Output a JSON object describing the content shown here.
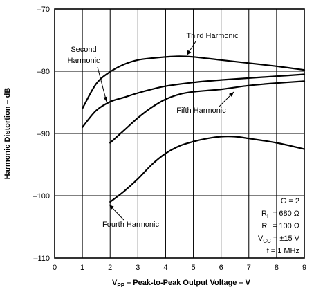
{
  "chart_data": {
    "type": "line",
    "title": "",
    "xlabel": {
      "main": "V",
      "subscript": "PP",
      "rest": " – Peak-to-Peak Output Voltage – V"
    },
    "ylabel": "Harmonic Distortion – dB",
    "xlim": [
      0,
      9
    ],
    "ylim": [
      -110,
      -70
    ],
    "x_ticks": [
      "0",
      "1",
      "2",
      "3",
      "4",
      "5",
      "6",
      "7",
      "8",
      "9"
    ],
    "y_ticks": [
      "–70",
      "–80",
      "–90",
      "–100",
      "–110"
    ],
    "y_tick_values": [
      -70,
      -80,
      -90,
      -100,
      -110
    ],
    "grid": true,
    "series": [
      {
        "name": "Second Harmonic",
        "x": [
          1,
          1.5,
          2,
          2.5,
          3,
          3.5,
          4,
          5,
          6,
          7,
          8,
          9
        ],
        "y": [
          -89,
          -86.3,
          -84.9,
          -84.2,
          -83.5,
          -82.9,
          -82.4,
          -81.8,
          -81.4,
          -81.1,
          -80.8,
          -80.5
        ]
      },
      {
        "name": "Third Harmonic",
        "x": [
          1,
          1.5,
          2,
          2.5,
          3,
          3.5,
          4,
          4.5,
          5,
          6,
          7,
          8,
          9
        ],
        "y": [
          -86,
          -82,
          -80.1,
          -78.9,
          -78.2,
          -77.9,
          -77.7,
          -77.6,
          -77.7,
          -78.2,
          -78.7,
          -79.2,
          -79.8
        ]
      },
      {
        "name": "Fifth Harmonic",
        "x": [
          2,
          2.5,
          3,
          3.5,
          4,
          4.5,
          5,
          6,
          7,
          8,
          9
        ],
        "y": [
          -91.5,
          -89.5,
          -87.5,
          -85.8,
          -84.5,
          -83.7,
          -83.3,
          -82.9,
          -82.3,
          -81.9,
          -81.6
        ]
      },
      {
        "name": "Fourth Harmonic",
        "x": [
          2,
          2.5,
          3,
          3.5,
          4,
          4.5,
          5,
          5.5,
          6,
          6.5,
          7,
          8,
          9
        ],
        "y": [
          -101,
          -99.3,
          -97.3,
          -95,
          -93.2,
          -92,
          -91.3,
          -90.8,
          -90.5,
          -90.5,
          -90.8,
          -91.5,
          -92.5
        ]
      }
    ],
    "annotations": {
      "second": [
        "Second",
        "Harmonic"
      ],
      "third": "Third Harmonic",
      "fifth": "Fifth Harmonic",
      "fourth": "Fourth Harmonic"
    },
    "conditions": [
      {
        "main": "G = 2",
        "sub": "",
        "rest": ""
      },
      {
        "main": "R",
        "sub": "F",
        "rest": " = 680 Ω"
      },
      {
        "main": "R",
        "sub": "L",
        "rest": " = 100 Ω"
      },
      {
        "main": "V",
        "sub": "CC",
        "rest": " = ±15 V"
      },
      {
        "main": "f = 1 MHz",
        "sub": "",
        "rest": ""
      }
    ]
  }
}
